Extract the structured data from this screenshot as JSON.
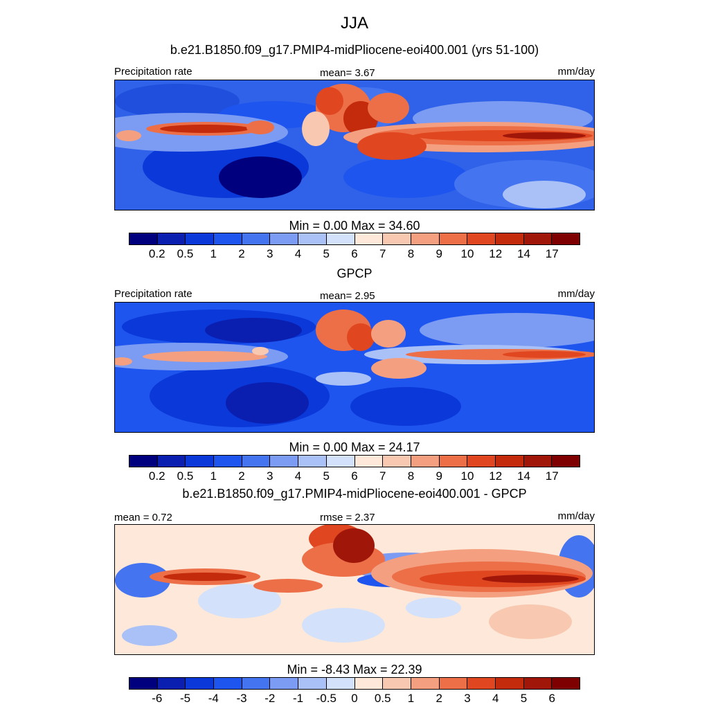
{
  "title": "JJA",
  "panels": [
    {
      "heading": "b.e21.B1850.f09_g17.PMIP4-midPliocene-eoi400.001 (yrs 51-100)",
      "left_label": "Precipitation rate",
      "center_label": "mean=   3.67",
      "right_label": "mm/day",
      "minmax": "Min =   0.00 Max =  34.60",
      "colorbar_labels": [
        "0.2",
        "0.5",
        "1",
        "2",
        "3",
        "4",
        "5",
        "6",
        "7",
        "8",
        "9",
        "10",
        "12",
        "14",
        "17"
      ]
    },
    {
      "heading": "GPCP",
      "left_label": "Precipitation rate",
      "center_label": "mean=   2.95",
      "right_label": "mm/day",
      "minmax": "Min =   0.00 Max =  24.17",
      "colorbar_labels": [
        "0.2",
        "0.5",
        "1",
        "2",
        "3",
        "4",
        "5",
        "6",
        "7",
        "8",
        "9",
        "10",
        "12",
        "14",
        "17"
      ]
    },
    {
      "heading": "b.e21.B1850.f09_g17.PMIP4-midPliocene-eoi400.001 - GPCP",
      "left_label": "mean =   0.72",
      "center_label": "rmse =   2.37",
      "right_label": "mm/day",
      "minmax": "Min =  -8.43 Max =  22.39",
      "colorbar_labels": [
        "-6",
        "-5",
        "-4",
        "-3",
        "-2",
        "-1",
        "-0.5",
        "0",
        "0.5",
        "1",
        "2",
        "3",
        "4",
        "5",
        "6"
      ]
    }
  ],
  "colorbar_colors": [
    "#00007f",
    "#0a1fb0",
    "#0b38d8",
    "#1f55ef",
    "#4474f0",
    "#7b9cf2",
    "#a9c1f7",
    "#d3e1fb",
    "#fde8d9",
    "#f8c8b0",
    "#f4a080",
    "#ec6f48",
    "#e0461f",
    "#c42a0c",
    "#a0170a",
    "#7f0000"
  ]
}
